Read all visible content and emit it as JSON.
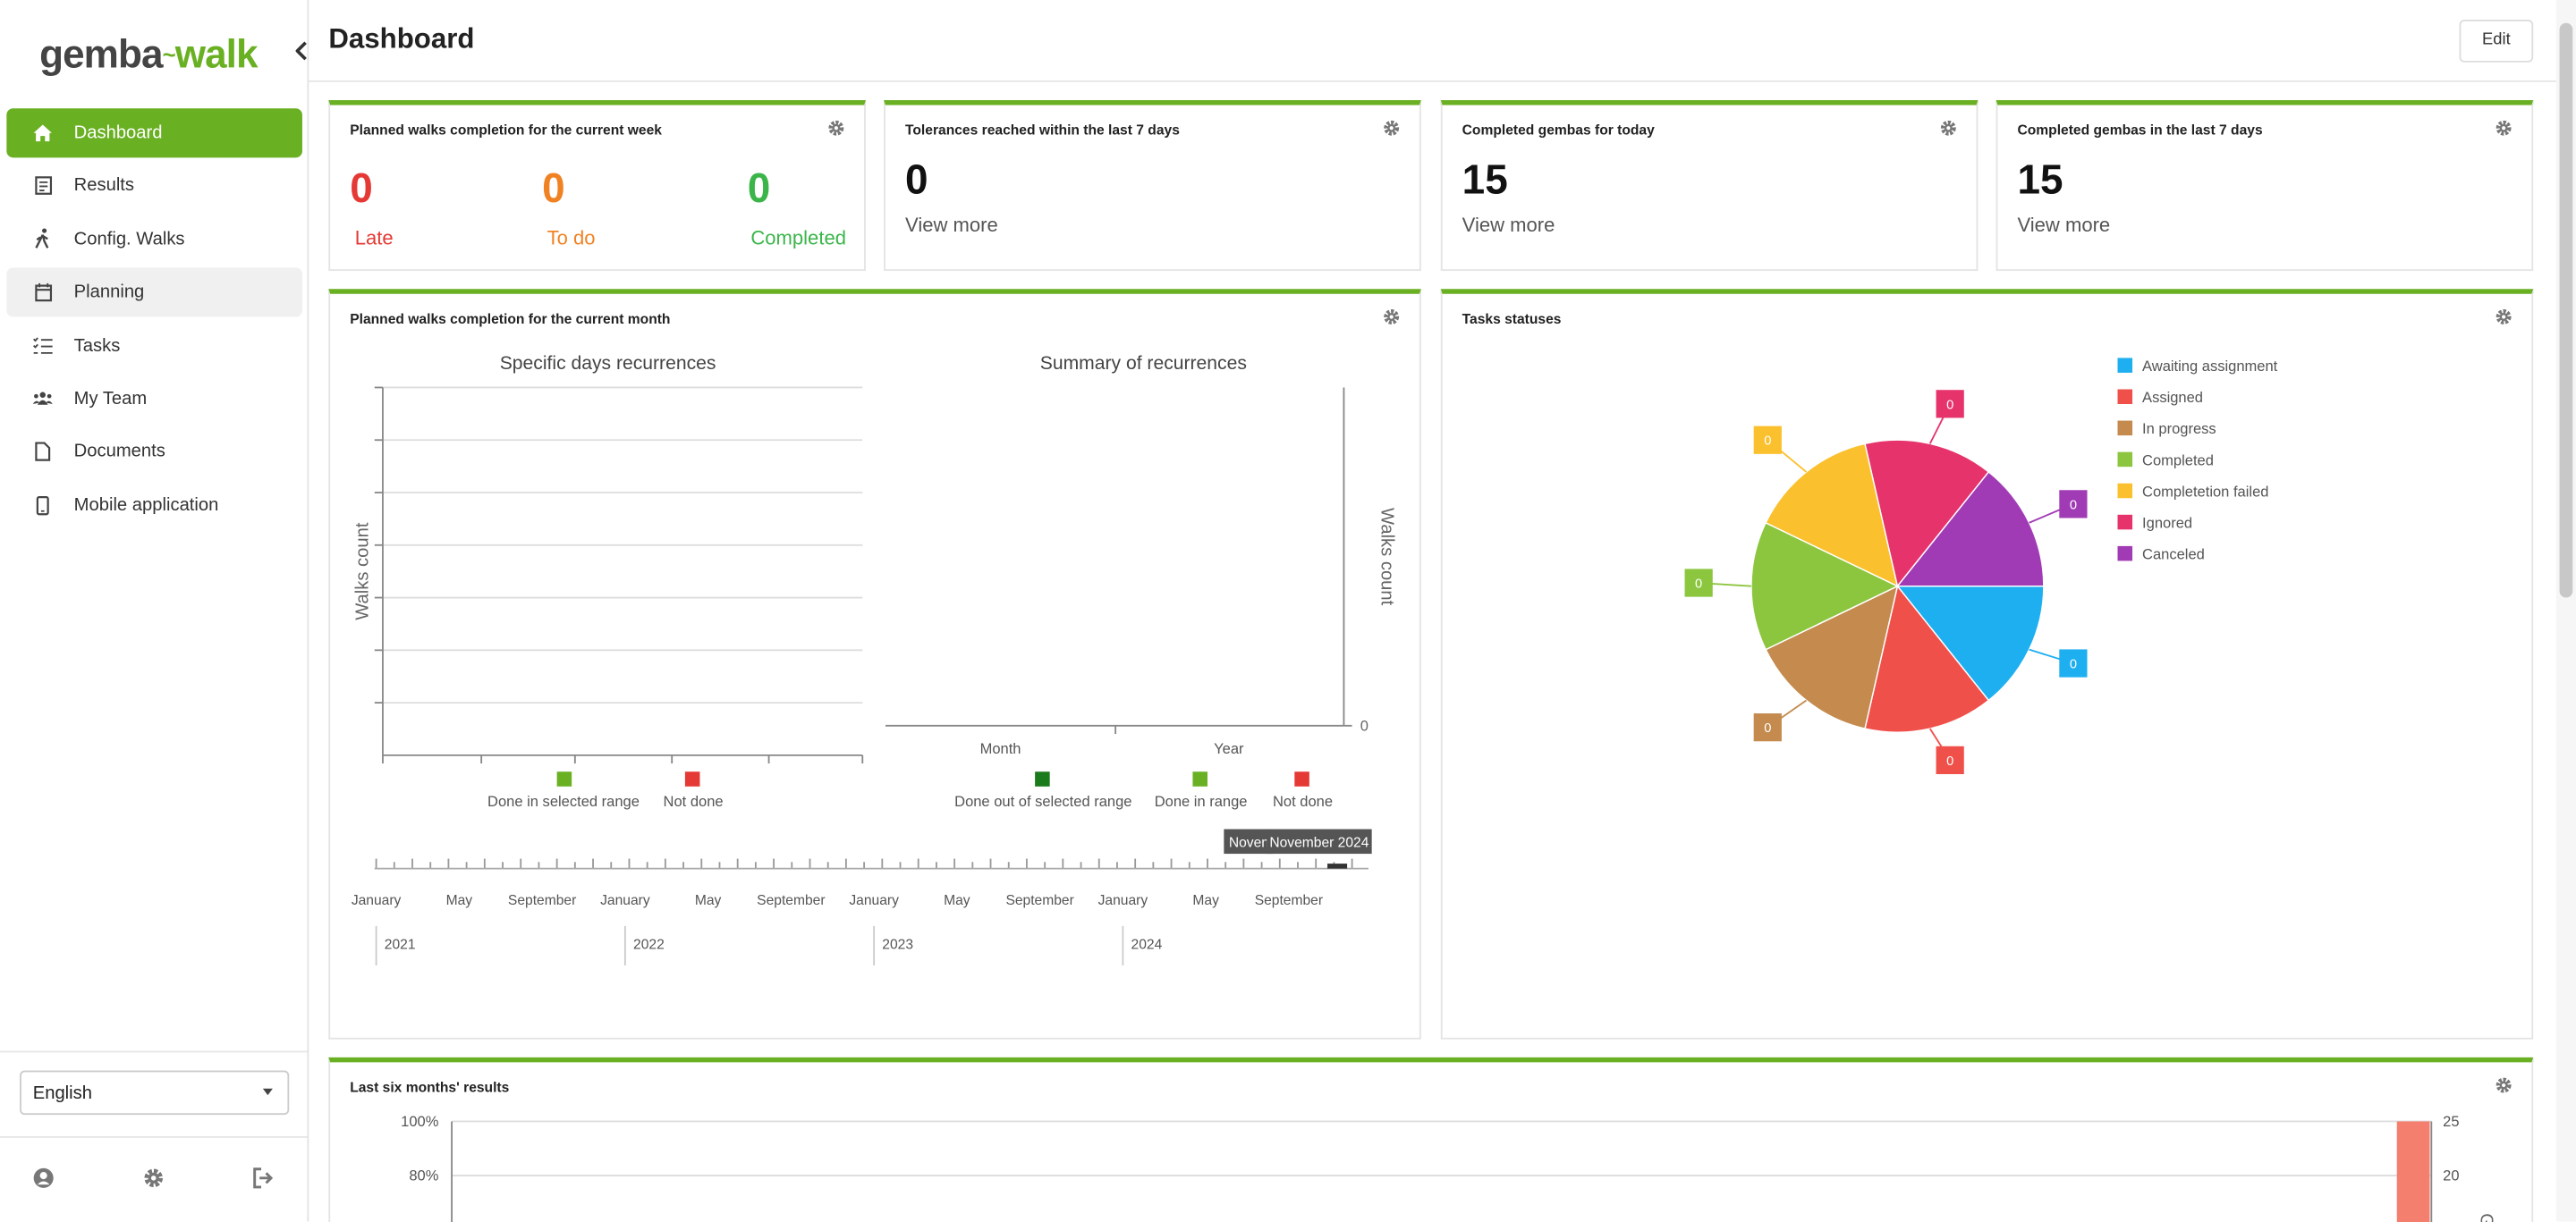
{
  "app": {
    "logo_left": "gemba",
    "logo_right": "walk"
  },
  "sidebar": {
    "items": [
      {
        "label": "Dashboard",
        "icon": "home-icon"
      },
      {
        "label": "Results",
        "icon": "results-icon"
      },
      {
        "label": "Config. Walks",
        "icon": "walk-icon"
      },
      {
        "label": "Planning",
        "icon": "calendar-icon"
      },
      {
        "label": "Tasks",
        "icon": "tasks-icon"
      },
      {
        "label": "My Team",
        "icon": "team-icon"
      },
      {
        "label": "Documents",
        "icon": "document-icon"
      },
      {
        "label": "Mobile application",
        "icon": "mobile-icon"
      }
    ],
    "language": "English"
  },
  "header": {
    "title": "Dashboard",
    "edit_label": "Edit"
  },
  "widgets": {
    "week": {
      "title": "Planned walks completion for the current week",
      "late_value": "0",
      "late_label": "Late",
      "todo_value": "0",
      "todo_label": "To do",
      "completed_value": "0",
      "completed_label": "Completed"
    },
    "tolerances": {
      "title": "Tolerances reached within the last 7 days",
      "value": "0",
      "link": "View more"
    },
    "today": {
      "title": "Completed gembas for today",
      "value": "15",
      "link": "View more"
    },
    "last7": {
      "title": "Completed gembas in the last 7 days",
      "value": "15",
      "link": "View more"
    },
    "month": {
      "title": "Planned walks completion for the current month",
      "left_chart_title": "Specific days recurrences",
      "left_ylabel": "Walks count",
      "right_chart_title": "Summary of recurrences",
      "right_ylabel": "Walks count",
      "right_categories": [
        "Month",
        "Year"
      ],
      "right_zero": "0",
      "left_legend": [
        "Done in selected range",
        "Not done"
      ],
      "right_legend": [
        "Done out of selected range",
        "Done in range",
        "Not done"
      ],
      "timeline_months": [
        "January",
        "May",
        "September",
        "January",
        "May",
        "September",
        "January",
        "May",
        "September",
        "January",
        "May",
        "September"
      ],
      "timeline_years": [
        "2021",
        "2022",
        "2023",
        "2024"
      ],
      "tooltip_a": "Novem",
      "tooltip_b": "November 2024"
    },
    "tasks": {
      "title": "Tasks statuses"
    },
    "six": {
      "title": "Last six months' results",
      "y_left": [
        "100%",
        "80%"
      ],
      "y_right": [
        "25",
        "20"
      ],
      "y_right_label": "Ge"
    }
  },
  "colors": {
    "accent": "#6ab023",
    "late": "#e53935",
    "todo": "#f08224",
    "completed": "#3bb54a"
  },
  "chart_data": [
    {
      "type": "pie",
      "title": "Tasks statuses",
      "categories": [
        "Awaiting assignment",
        "Assigned",
        "In progress",
        "Completed",
        "Completetion failed",
        "Ignored",
        "Canceled"
      ],
      "values": [
        0,
        0,
        0,
        0,
        0,
        0,
        0
      ],
      "colors": [
        "#1eaff0",
        "#f0504a",
        "#c48a4e",
        "#8cc63f",
        "#fbc02d",
        "#e6336c",
        "#a13bb5"
      ],
      "legend": "right"
    },
    {
      "type": "bar",
      "title": "Specific days recurrences",
      "ylabel": "Walks count",
      "series": [
        {
          "name": "Done in selected range",
          "values": []
        },
        {
          "name": "Not done",
          "values": []
        }
      ],
      "series_colors": [
        "#6ab023",
        "#e53935"
      ]
    },
    {
      "type": "bar",
      "title": "Summary of recurrences",
      "categories": [
        "Month",
        "Year"
      ],
      "ylabel": "Walks count",
      "series": [
        {
          "name": "Done out of selected range",
          "values": [
            0,
            0
          ]
        },
        {
          "name": "Done in range",
          "values": [
            0,
            0
          ]
        },
        {
          "name": "Not done",
          "values": [
            0,
            0
          ]
        }
      ],
      "series_colors": [
        "#1b7a1b",
        "#6ab023",
        "#e53935"
      ]
    }
  ]
}
